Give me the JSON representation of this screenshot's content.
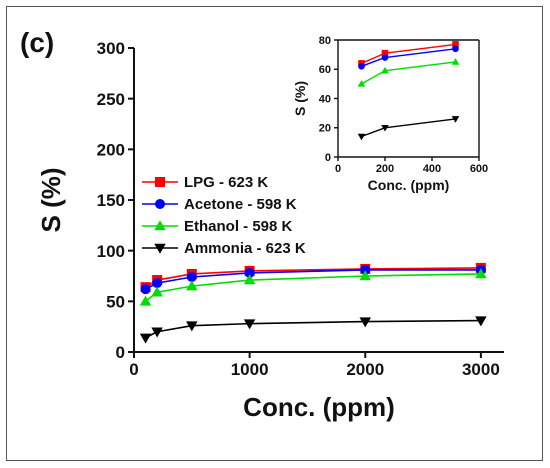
{
  "panel_label": "(c)",
  "chart_data": [
    {
      "type": "line",
      "xlabel": "Conc. (ppm)",
      "ylabel": "S (%)",
      "xlim": [
        0,
        3200
      ],
      "ylim": [
        0,
        300
      ],
      "xticks": [
        0,
        1000,
        2000,
        3000
      ],
      "yticks": [
        0,
        50,
        100,
        150,
        200,
        250,
        300
      ],
      "legend_position": "left",
      "series": [
        {
          "name": "LPG - 623 K",
          "color": "#ff0000",
          "marker": "square",
          "x": [
            100,
            200,
            500,
            1000,
            2000,
            3000
          ],
          "y": [
            64,
            71,
            77,
            80,
            82,
            83
          ]
        },
        {
          "name": "Acetone - 598 K",
          "color": "#0000ff",
          "marker": "circle",
          "x": [
            100,
            200,
            500,
            1000,
            2000,
            3000
          ],
          "y": [
            62,
            68,
            74,
            78,
            81,
            81
          ]
        },
        {
          "name": "Ethanol - 598 K",
          "color": "#00dd00",
          "marker": "triangle-up",
          "x": [
            100,
            200,
            500,
            1000,
            2000,
            3000
          ],
          "y": [
            50,
            59,
            65,
            71,
            75,
            77
          ]
        },
        {
          "name": "Ammonia - 623 K",
          "color": "#000000",
          "marker": "triangle-down",
          "x": [
            100,
            200,
            500,
            1000,
            2000,
            3000
          ],
          "y": [
            14,
            20,
            26,
            28,
            30,
            31
          ]
        }
      ]
    },
    {
      "type": "line",
      "xlabel": "Conc. (ppm)",
      "ylabel": "S (%)",
      "xlim": [
        0,
        600
      ],
      "ylim": [
        0,
        80
      ],
      "xticks": [
        0,
        200,
        400,
        600
      ],
      "yticks": [
        0,
        20,
        40,
        60,
        80
      ],
      "series": [
        {
          "name": "",
          "color": "#ff0000",
          "marker": "square",
          "x": [
            100,
            200,
            500
          ],
          "y": [
            64,
            71,
            77
          ]
        },
        {
          "name": "",
          "color": "#0000ff",
          "marker": "circle",
          "x": [
            100,
            200,
            500
          ],
          "y": [
            62,
            68,
            74
          ]
        },
        {
          "name": "",
          "color": "#00dd00",
          "marker": "triangle-up",
          "x": [
            100,
            200,
            500
          ],
          "y": [
            50,
            59,
            65
          ]
        },
        {
          "name": "",
          "color": "#000000",
          "marker": "triangle-down",
          "x": [
            100,
            200,
            500
          ],
          "y": [
            14,
            20,
            26
          ]
        }
      ]
    }
  ]
}
